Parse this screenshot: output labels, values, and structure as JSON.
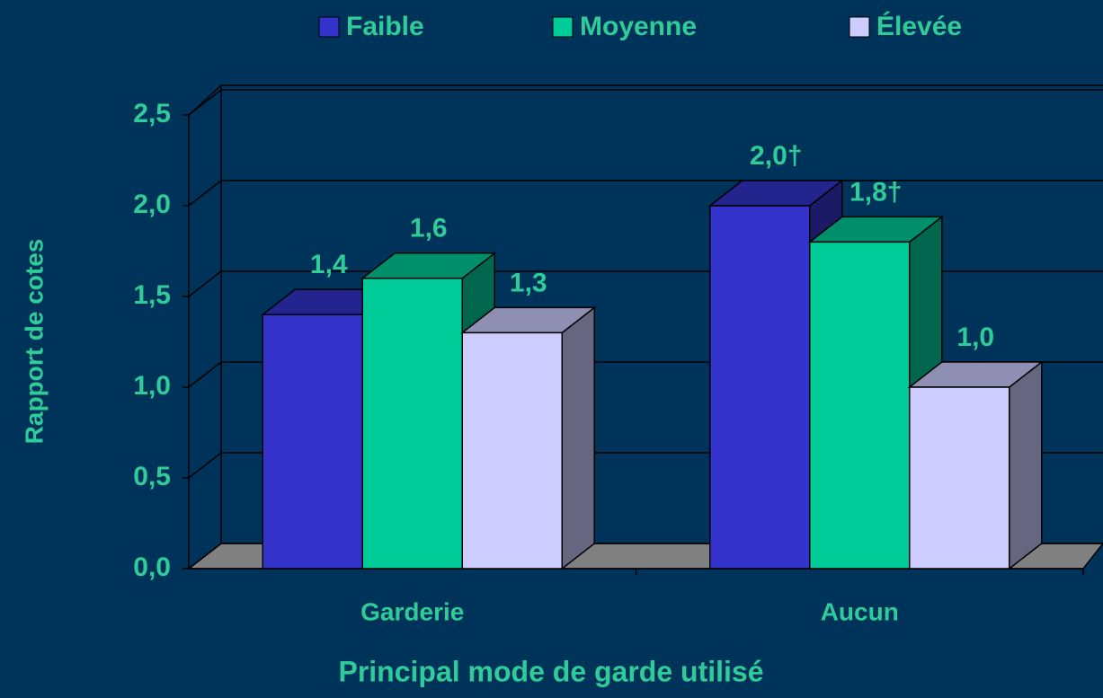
{
  "chart_data": {
    "type": "bar3d",
    "categories": [
      "Garderie",
      "Aucun"
    ],
    "series": [
      {
        "name": "Faible",
        "color": "#3333cc",
        "values": [
          1.4,
          2.0
        ],
        "value_labels": [
          "1,4",
          "2,0†"
        ]
      },
      {
        "name": "Moyenne",
        "color": "#00cc99",
        "values": [
          1.6,
          1.8
        ],
        "value_labels": [
          "1,6",
          "1,8†"
        ]
      },
      {
        "name": "Élevée",
        "color": "#ccccff",
        "values": [
          1.3,
          1.0
        ],
        "value_labels": [
          "1,3",
          "1,0"
        ]
      }
    ],
    "ylabel": "Rapport de cotes",
    "xlabel": "Principal mode de garde utilisé",
    "ylim": [
      0,
      2.5
    ],
    "yticks": [
      {
        "value": 0,
        "label": "0,0"
      },
      {
        "value": 0.5,
        "label": "0,5"
      },
      {
        "value": 1,
        "label": "1,0"
      },
      {
        "value": 1.5,
        "label": "1,5"
      },
      {
        "value": 2,
        "label": "2,0"
      },
      {
        "value": 2.5,
        "label": "2,5"
      }
    ],
    "grid": true,
    "legend": "top"
  }
}
